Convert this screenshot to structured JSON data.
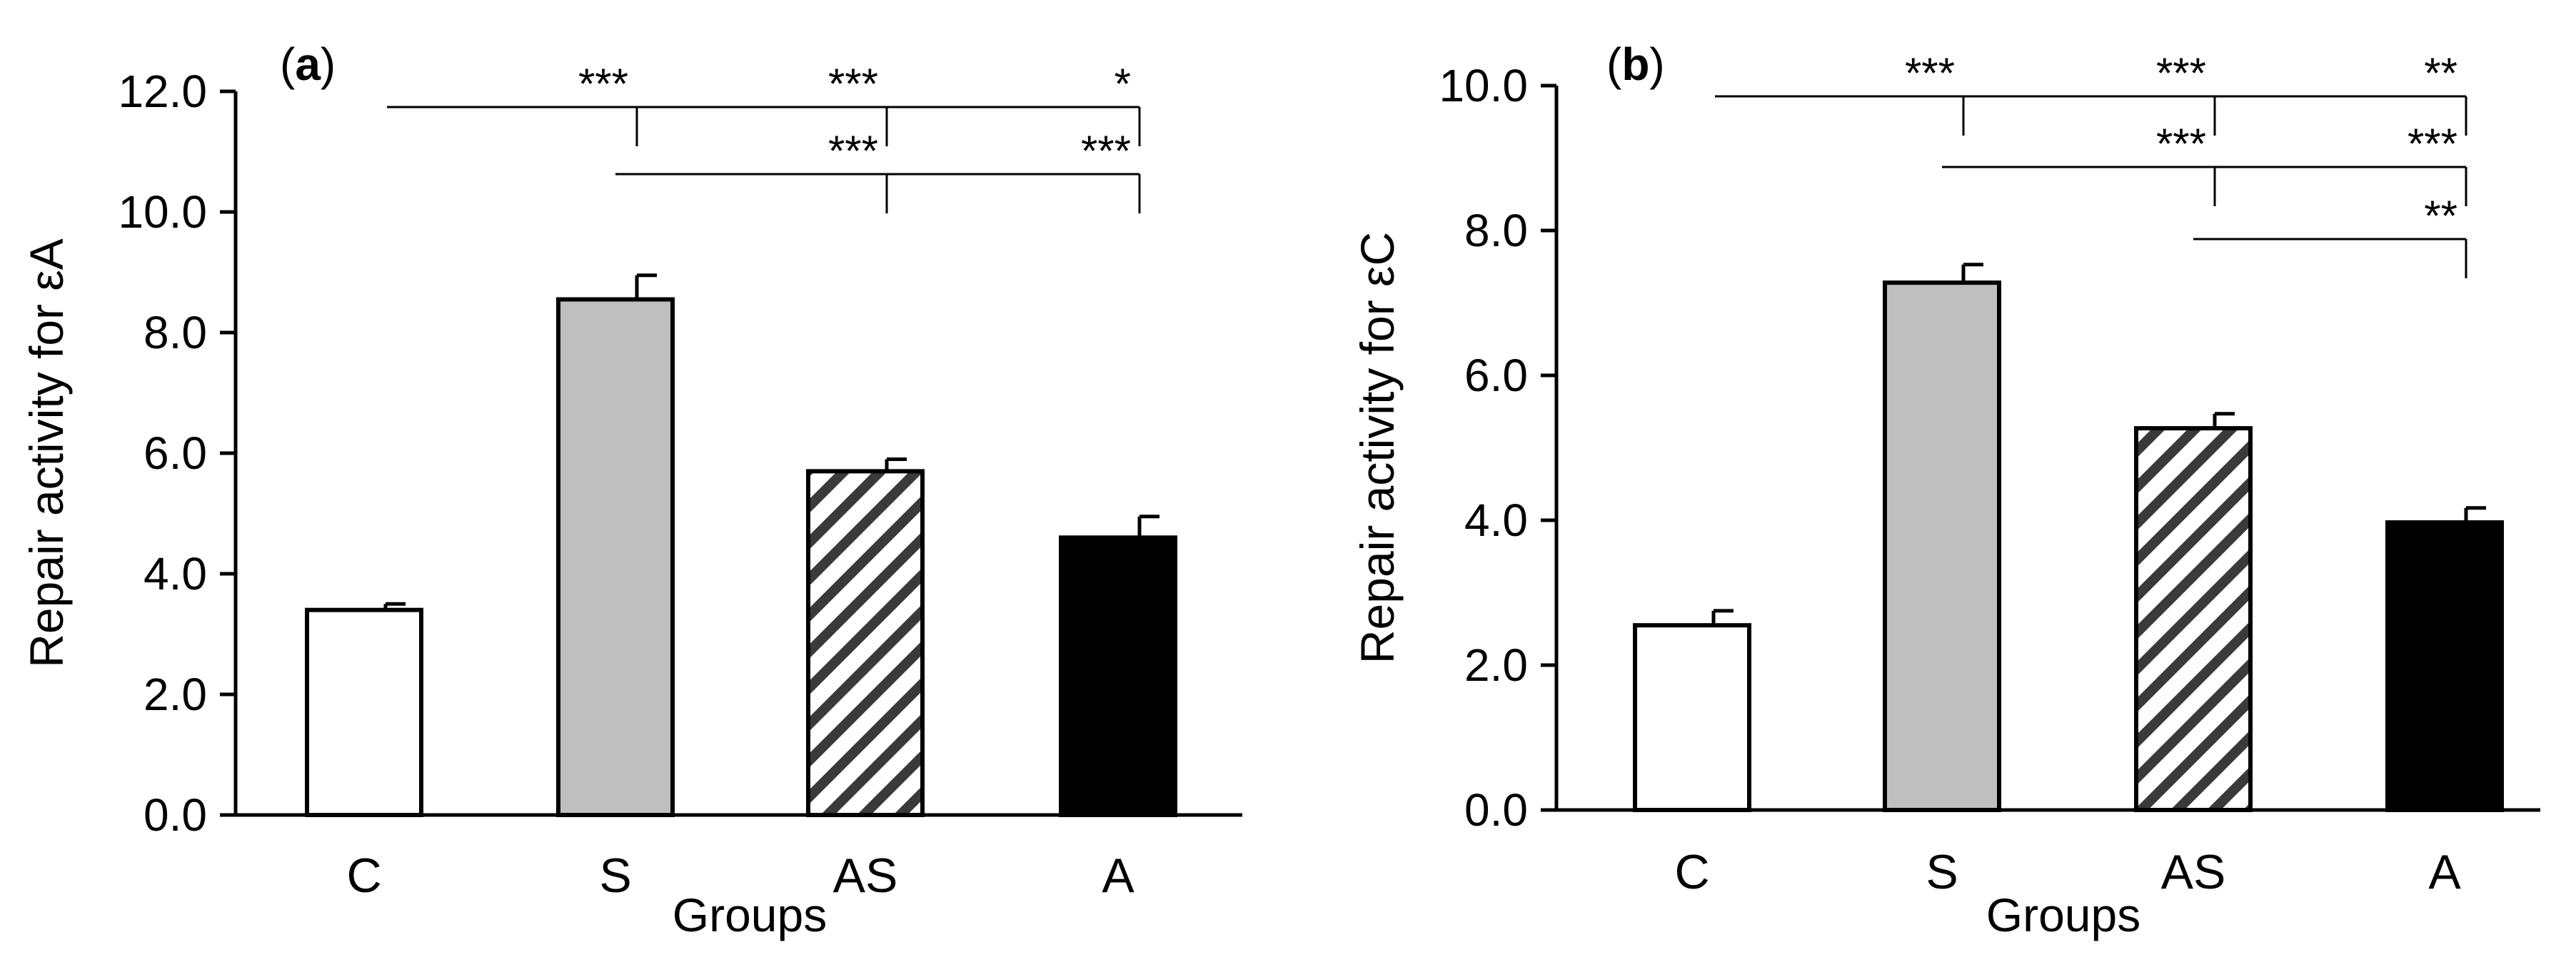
{
  "chart_data": [
    {
      "type": "bar",
      "panel_label": "(a)",
      "panel_letter": "a",
      "categories": [
        "C",
        "S",
        "AS",
        "A"
      ],
      "values": [
        3.4,
        8.55,
        5.7,
        4.6
      ],
      "errors": [
        0.1,
        0.4,
        0.2,
        0.35
      ],
      "fills": [
        "white",
        "#bfbfbf",
        "hatch",
        "#000000"
      ],
      "xlabel": "Groups",
      "ylabel": "Repair activity for εA",
      "ylim": [
        0,
        12
      ],
      "yticks": [
        "0.0",
        "2.0",
        "4.0",
        "6.0",
        "8.0",
        "10.0",
        "12.0"
      ],
      "significance": [
        {
          "label": "***",
          "from": "C",
          "to": "S",
          "row": 0
        },
        {
          "label": "***",
          "from": "S",
          "to": "AS",
          "row": 0
        },
        {
          "label": "*",
          "from": "AS",
          "to": "A",
          "row": 0
        },
        {
          "label": "***",
          "from": "S",
          "to": "AS",
          "row": 1
        },
        {
          "label": "***",
          "from": "AS",
          "to": "A",
          "row": 1
        }
      ]
    },
    {
      "type": "bar",
      "panel_label": "(b)",
      "panel_letter": "b",
      "categories": [
        "C",
        "S",
        "AS",
        "A"
      ],
      "values": [
        2.55,
        7.28,
        5.27,
        3.97
      ],
      "errors": [
        0.2,
        0.25,
        0.2,
        0.2
      ],
      "fills": [
        "white",
        "#bfbfbf",
        "hatch",
        "#000000"
      ],
      "xlabel": "Groups",
      "ylabel": "Repair activity for εC",
      "ylim": [
        0,
        10
      ],
      "yticks": [
        "0.0",
        "2.0",
        "4.0",
        "6.0",
        "8.0",
        "10.0"
      ],
      "significance": [
        {
          "label": "***",
          "from": "C",
          "to": "S",
          "row": 0
        },
        {
          "label": "***",
          "from": "S",
          "to": "AS",
          "row": 0
        },
        {
          "label": "**",
          "from": "AS",
          "to": "A",
          "row": 0
        },
        {
          "label": "***",
          "from": "S",
          "to": "AS",
          "row": 1
        },
        {
          "label": "***",
          "from": "AS",
          "to": "A",
          "row": 1
        },
        {
          "label": "**",
          "from": "AS",
          "to": "A",
          "row": 2
        }
      ]
    }
  ]
}
